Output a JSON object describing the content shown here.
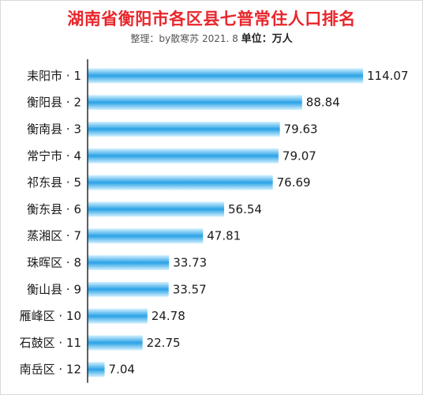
{
  "title": "湖南省衡阳市各区县七普常住人口排名",
  "subtitle_prefix": "整理：by散寒苏  2021. 8",
  "subtitle_unit": "单位：万人",
  "colors": {
    "title": "#e8262c",
    "bar_dark": "#2aa2e6",
    "bar_light": "#d6f2ff",
    "axis": "#2b2b2b"
  },
  "chart_data": {
    "type": "bar",
    "orientation": "horizontal",
    "title": "湖南省衡阳市各区县七普常住人口排名",
    "categories": [
      "耒阳市 · 1",
      "衡阳县 · 2",
      "衡南县 · 3",
      "常宁市 · 4",
      "祁东县 · 5",
      "衡东县 · 6",
      "蒸湘区 · 7",
      "珠晖区 · 8",
      "衡山县 · 9",
      "雁峰区 · 10",
      "石鼓区 · 11",
      "南岳区 · 12"
    ],
    "values": [
      114.07,
      88.84,
      79.63,
      79.07,
      76.69,
      56.54,
      47.81,
      33.73,
      33.57,
      24.78,
      22.75,
      7.04
    ],
    "value_labels": [
      "114.07",
      "88.84",
      "79.63",
      "79.07",
      "76.69",
      "56.54",
      "47.81",
      "33.73",
      "33.57",
      "24.78",
      "22.75",
      "7.04"
    ],
    "xlim": [
      0,
      114.07
    ],
    "unit": "万人",
    "grid": false,
    "data_labels": true
  }
}
